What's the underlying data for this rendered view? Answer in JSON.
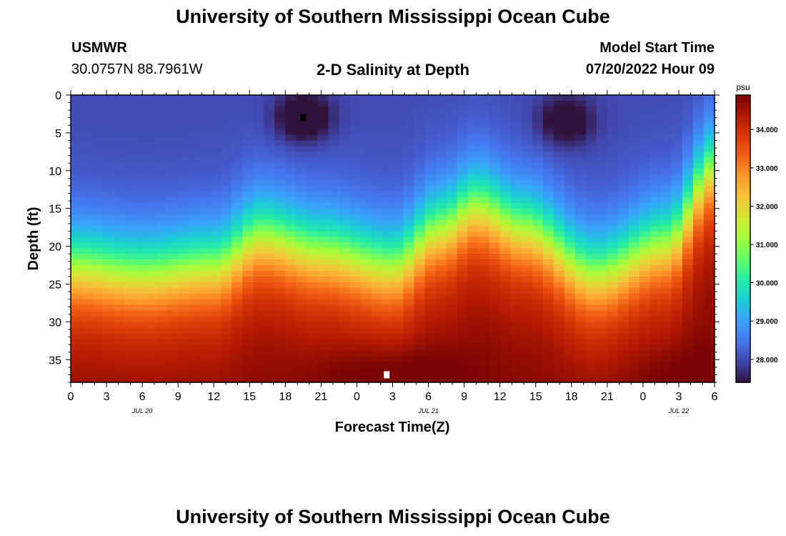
{
  "header": {
    "title": "University of Southern Mississippi Ocean Cube",
    "station": "USMWR",
    "coords": "30.0757N  88.7961W",
    "subtitle": "2-D Salinity at Depth",
    "model_label": "Model Start Time",
    "model_time": "07/20/2022 Hour 09",
    "footer_title": "University of Southern Mississippi Ocean Cube"
  },
  "chart_data": {
    "type": "heatmap",
    "title": "2-D Salinity at Depth",
    "xlabel": "Forecast Time(Z)",
    "ylabel": "Depth (ft)",
    "x_tick_labels": [
      "0",
      "3",
      "6",
      "9",
      "12",
      "15",
      "18",
      "21",
      "0",
      "3",
      "6",
      "9",
      "12",
      "15",
      "18",
      "21",
      "0",
      "3",
      "6"
    ],
    "date_labels": [
      {
        "label": "JUL 20",
        "hour_index": 6
      },
      {
        "label": "JUL 21",
        "hour_index": 30
      },
      {
        "label": "JUL 22",
        "hour_index": 51
      }
    ],
    "x_range_hours": [
      0,
      54
    ],
    "y_ticks": [
      0,
      5,
      10,
      15,
      20,
      25,
      30,
      35
    ],
    "y_range_ft": [
      0,
      38
    ],
    "y_inverted": true,
    "colorbar": {
      "unit": "psu",
      "ticks": [
        "28.000",
        "29.000",
        "30.000",
        "31.000",
        "32.000",
        "33.000",
        "34.000"
      ],
      "tick_values": [
        28,
        29,
        30,
        31,
        32,
        33,
        34
      ],
      "range": [
        27.4,
        34.9
      ],
      "colormap": [
        "#30123b",
        "#4145ab",
        "#4675ed",
        "#39a2fc",
        "#1bcfd4",
        "#24eca6",
        "#61fc6c",
        "#a4fc3b",
        "#d1e834",
        "#f3c63a",
        "#fe9b2d",
        "#f36315",
        "#d93806",
        "#b11901",
        "#7a0402"
      ]
    },
    "field_description": {
      "surface_salinity_psu": 28.0,
      "deep_salinity_psu": 34.8,
      "halocline_depth_ft_by_hour": [
        [
          0,
          23
        ],
        [
          6,
          24
        ],
        [
          12,
          23
        ],
        [
          16,
          19
        ],
        [
          21,
          21
        ],
        [
          27,
          23
        ],
        [
          31,
          18
        ],
        [
          34,
          15
        ],
        [
          38,
          18
        ],
        [
          44,
          24
        ],
        [
          50,
          20
        ],
        [
          54,
          10
        ]
      ],
      "low_salinity_patches": [
        {
          "hour": 19.5,
          "depth_ft": 3,
          "min_psu": 27.4
        },
        {
          "hour": 41.5,
          "depth_ft": 3.5,
          "min_psu": 27.6
        }
      ],
      "high_salinity_patches": [
        {
          "hour": 27,
          "depth_ft": 37,
          "max_psu": 34.9
        },
        {
          "hour": 54,
          "depth_ft": 38,
          "max_psu": 34.9
        }
      ]
    },
    "markers": [
      {
        "type": "min",
        "hour": 19.5,
        "depth_ft": 3.0,
        "color": "#000000"
      },
      {
        "type": "max",
        "hour": 26.5,
        "depth_ft": 37.0,
        "color": "#ffffff"
      }
    ],
    "grid": false
  }
}
